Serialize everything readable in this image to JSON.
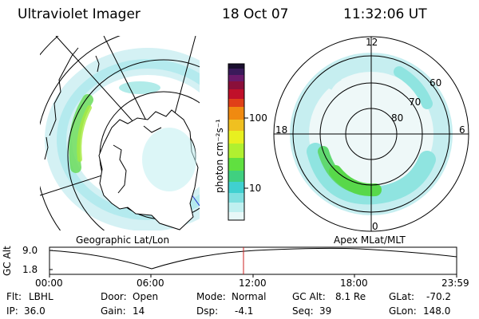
{
  "header": {
    "title": "Ultraviolet Imager",
    "date": "18 Oct 07",
    "time": "11:32:06 UT"
  },
  "left_panel": {
    "caption": "Geographic Lat/Lon"
  },
  "colorbar": {
    "unit_label": "photon cm⁻²s⁻¹",
    "ticks": [
      "100",
      "10"
    ],
    "colors": [
      "#1a0f2e",
      "#3a1a5a",
      "#6a1a6a",
      "#8a0f3a",
      "#c0102a",
      "#e04018",
      "#f08a10",
      "#f0c020",
      "#e8f020",
      "#b0f030",
      "#60e040",
      "#40d080",
      "#40d0d0",
      "#80e0e0",
      "#c0f0f0",
      "#e8f8f8"
    ]
  },
  "right_panel": {
    "caption": "Apex MLat/MLT",
    "mlt_labels": [
      "12",
      "18",
      "6",
      "0"
    ],
    "lat_labels": [
      "60",
      "70",
      "80"
    ]
  },
  "altitude_plot": {
    "ylabel": "GC Alt",
    "yticks": [
      "9.0",
      "1.8"
    ],
    "xticks": [
      "00:00",
      "06:00",
      "12:00",
      "18:00",
      "23:59"
    ],
    "current_time_marker_color": "#cc2222"
  },
  "status": {
    "row1": [
      {
        "label": "Flt:",
        "value": "LBHL"
      },
      {
        "label": "Door:",
        "value": "Open"
      },
      {
        "label": "Mode:",
        "value": "Normal"
      },
      {
        "label": "GC Alt:",
        "value": "8.1 Re"
      },
      {
        "label": "GLat:",
        "value": "-70.2"
      }
    ],
    "row2": [
      {
        "label": "IP:",
        "value": "36.0"
      },
      {
        "label": "Gain:",
        "value": "14"
      },
      {
        "label": "Dsp:",
        "value": "-4.1"
      },
      {
        "label": "Seq:",
        "value": "39"
      },
      {
        "label": "GLon:",
        "value": "148.0"
      }
    ]
  }
}
